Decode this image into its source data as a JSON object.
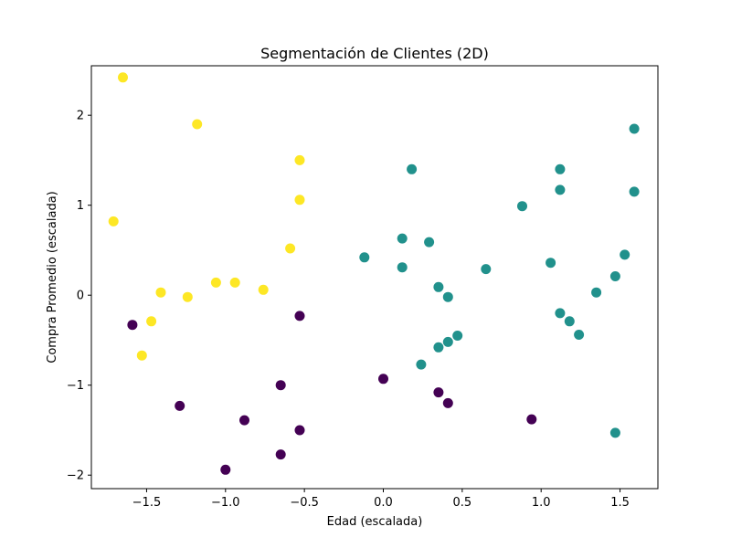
{
  "chart_data": {
    "type": "scatter",
    "title": "Segmentación de Clientes (2D)",
    "xlabel": "Edad (escalada)",
    "ylabel": "Compra Promedio (escalada)",
    "xlim": [
      -1.85,
      1.74
    ],
    "ylim": [
      -2.15,
      2.55
    ],
    "x_ticks": [
      -1.5,
      -1.0,
      -0.5,
      0.0,
      0.5,
      1.0,
      1.5
    ],
    "x_tick_labels": [
      "−1.5",
      "−1.0",
      "−0.5",
      "0.0",
      "0.5",
      "1.0",
      "1.5"
    ],
    "y_ticks": [
      -2,
      -1,
      0,
      1,
      2
    ],
    "y_tick_labels": [
      "−2",
      "−1",
      "0",
      "1",
      "2"
    ],
    "grid": false,
    "legend": "none",
    "colormap": "viridis",
    "series": [
      {
        "color": "#fde725",
        "points": [
          [
            -1.65,
            2.42
          ],
          [
            -1.18,
            1.9
          ],
          [
            -0.53,
            1.5
          ],
          [
            -0.53,
            1.06
          ],
          [
            -1.71,
            0.82
          ],
          [
            -0.59,
            0.52
          ],
          [
            -1.06,
            0.14
          ],
          [
            -0.94,
            0.14
          ],
          [
            -0.76,
            0.06
          ],
          [
            -1.41,
            0.03
          ],
          [
            -1.24,
            -0.02
          ],
          [
            -1.47,
            -0.29
          ],
          [
            -1.53,
            -0.67
          ]
        ]
      },
      {
        "color": "#440154",
        "points": [
          [
            -1.59,
            -0.33
          ],
          [
            -0.53,
            -0.23
          ],
          [
            0.0,
            -0.93
          ],
          [
            -0.65,
            -1.0
          ],
          [
            0.35,
            -1.08
          ],
          [
            0.41,
            -1.2
          ],
          [
            -1.29,
            -1.23
          ],
          [
            -0.88,
            -1.39
          ],
          [
            0.94,
            -1.38
          ],
          [
            -0.53,
            -1.5
          ],
          [
            -0.65,
            -1.77
          ],
          [
            -1.0,
            -1.94
          ]
        ]
      },
      {
        "color": "#21918c",
        "points": [
          [
            1.59,
            1.85
          ],
          [
            0.18,
            1.4
          ],
          [
            1.12,
            1.4
          ],
          [
            1.12,
            1.17
          ],
          [
            1.59,
            1.15
          ],
          [
            0.88,
            0.99
          ],
          [
            0.12,
            0.63
          ],
          [
            0.29,
            0.59
          ],
          [
            -0.12,
            0.42
          ],
          [
            1.53,
            0.45
          ],
          [
            1.06,
            0.36
          ],
          [
            0.12,
            0.31
          ],
          [
            0.65,
            0.29
          ],
          [
            1.47,
            0.21
          ],
          [
            0.35,
            0.09
          ],
          [
            1.35,
            0.03
          ],
          [
            0.41,
            -0.02
          ],
          [
            1.12,
            -0.2
          ],
          [
            1.18,
            -0.29
          ],
          [
            1.24,
            -0.44
          ],
          [
            0.47,
            -0.45
          ],
          [
            0.41,
            -0.52
          ],
          [
            0.35,
            -0.58
          ],
          [
            0.24,
            -0.77
          ],
          [
            1.47,
            -1.53
          ]
        ]
      }
    ]
  }
}
